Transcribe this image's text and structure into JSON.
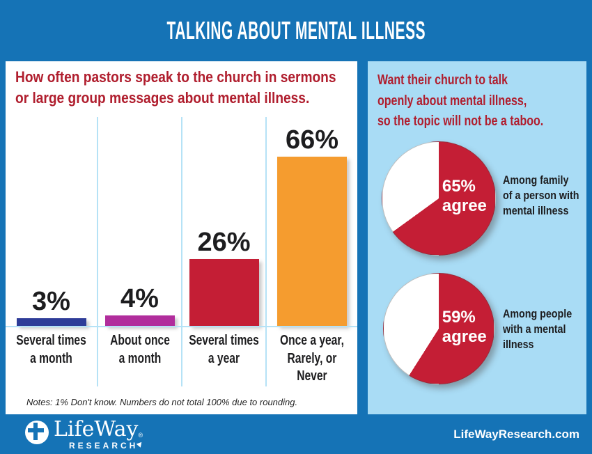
{
  "header": {
    "title": "TALKING ABOUT MENTAL ILLNESS"
  },
  "left_panel": {
    "title": "How often pastors speak to the church in sermons\nor large group messages about mental illness.",
    "note": "Notes: 1% Don't know. Numbers do not total 100% due to rounding."
  },
  "right_panel": {
    "title": "Want their church to talk\nopenly about mental illness,\nso the topic will not be a taboo."
  },
  "footer": {
    "logo": {
      "name": "LifeWay",
      "reg": "®",
      "sub": "RESEARCH",
      "icon": "globe-cross-icon"
    },
    "website": "LifeWayResearch.com"
  },
  "colors": {
    "background_blue": "#1573b6",
    "panel_light_blue": "#a9dcf5",
    "grid_light_blue": "#b5e2f6",
    "title_red": "#b01e2e",
    "text_black": "#1d1d1f",
    "white": "#ffffff"
  },
  "chart_data": [
    {
      "type": "bar",
      "title": "How often pastors speak to the church in sermons or large group messages about mental illness.",
      "categories": [
        "Several times\na month",
        "About once\na month",
        "Several times\na year",
        "Once a year,\nRarely, or\nNever"
      ],
      "values": [
        3,
        4,
        26,
        66
      ],
      "value_labels": [
        "3%",
        "4%",
        "26%",
        "66%"
      ],
      "bar_colors": [
        "#2e3c98",
        "#b12d9c",
        "#c41e35",
        "#f59c2f"
      ],
      "ylabel": "",
      "xlabel": "",
      "ylim": [
        0,
        80
      ],
      "grid": false,
      "note": "Notes: 1% Don't know. Numbers do not total 100% due to rounding."
    },
    {
      "type": "pie",
      "title": "Want their church to talk openly about mental illness, so the topic will not be a taboo.",
      "legend_position": "right",
      "pies": [
        {
          "value": 65,
          "value_label": "65%",
          "agree_word": "agree",
          "caption": "Among family\nof a person with\nmental illness",
          "slice_color": "#c41e35",
          "rest_color": "#ffffff"
        },
        {
          "value": 59,
          "value_label": "59%",
          "agree_word": "agree",
          "caption": "Among people\nwith a mental\nillness",
          "slice_color": "#c41e35",
          "rest_color": "#ffffff"
        }
      ]
    }
  ]
}
